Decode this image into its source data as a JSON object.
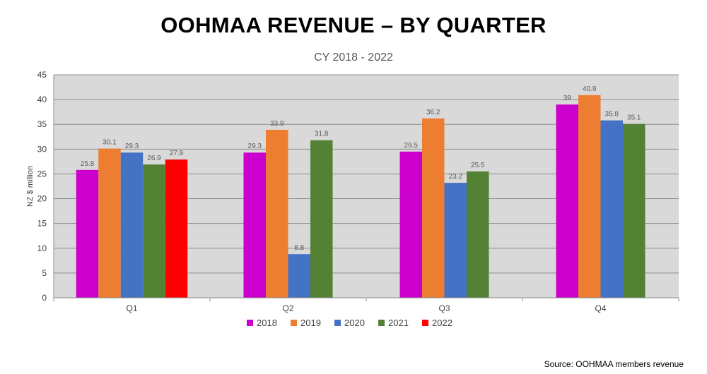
{
  "title": "OOHMAA REVENUE – BY QUARTER",
  "subtitle": "CY 2018 - 2022",
  "source": "Source: OOHMAA members revenue",
  "chart_data": {
    "type": "bar",
    "title": "OOHMAA REVENUE – BY QUARTER",
    "subtitle": "CY 2018 - 2022",
    "xlabel": "",
    "ylabel": "NZ $ million",
    "ylim": [
      0,
      45
    ],
    "yticks": [
      0,
      5,
      10,
      15,
      20,
      25,
      30,
      35,
      40,
      45
    ],
    "grid": true,
    "legend": "bottom",
    "plot_background": "#d9d9d9",
    "categories": [
      "Q1",
      "Q2",
      "Q3",
      "Q4"
    ],
    "series": [
      {
        "name": "2018",
        "color": "#cc00cc",
        "values": [
          25.8,
          29.3,
          29.5,
          39
        ]
      },
      {
        "name": "2019",
        "color": "#ed7d31",
        "values": [
          30.1,
          33.9,
          36.2,
          40.9
        ]
      },
      {
        "name": "2020",
        "color": "#4472c4",
        "values": [
          29.3,
          8.8,
          23.2,
          35.8
        ]
      },
      {
        "name": "2021",
        "color": "#548235",
        "values": [
          26.9,
          31.8,
          25.5,
          35.1
        ]
      },
      {
        "name": "2022",
        "color": "#ff0000",
        "values": [
          27.9,
          null,
          null,
          null
        ]
      }
    ],
    "data_labels": [
      [
        "25.8",
        "29.3",
        "29.5",
        "39"
      ],
      [
        "30.1",
        "33.9",
        "36.2",
        "40.9"
      ],
      [
        "29.3",
        "8.8",
        "23.2",
        "35.8"
      ],
      [
        "26.9",
        "31.8",
        "25.5",
        "35.1"
      ],
      [
        "27.9",
        "",
        "",
        ""
      ]
    ]
  }
}
